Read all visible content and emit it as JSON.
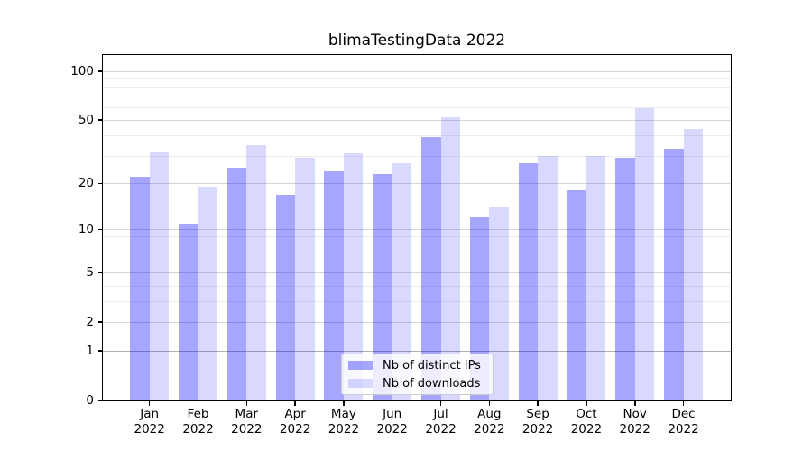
{
  "title": "blimaTestingData 2022",
  "chart_data": {
    "type": "bar",
    "title": "blimaTestingData 2022",
    "categories": [
      "Jan",
      "Feb",
      "Mar",
      "Apr",
      "May",
      "Jun",
      "Jul",
      "Aug",
      "Sep",
      "Oct",
      "Nov",
      "Dec"
    ],
    "category_year": "2022",
    "series": [
      {
        "name": "Nb of distinct IPs",
        "color": "rgba(0,0,255,0.35)",
        "values": [
          22,
          11,
          25,
          17,
          24,
          23,
          39,
          12,
          27,
          18,
          29,
          33
        ]
      },
      {
        "name": "Nb of downloads",
        "color": "rgba(0,0,255,0.15)",
        "values": [
          32,
          19,
          35,
          29,
          31,
          27,
          52,
          14,
          30,
          30,
          59,
          44
        ]
      }
    ],
    "xlabel": "",
    "ylabel": "",
    "yscale": "log1p",
    "ylim": [
      0,
      126
    ],
    "yticks_major": [
      0,
      1,
      2,
      5,
      10,
      20,
      50,
      100
    ],
    "yticks_minor": [
      3,
      4,
      6,
      7,
      8,
      9,
      30,
      40,
      60,
      70,
      80,
      90
    ],
    "emphasized_gridlines": [
      1
    ],
    "grid": true,
    "legend_position": "lower center",
    "colors": {
      "grid_major": "#d6d6d6",
      "grid_minor": "#ededed",
      "grid_emphasis": "#b0b0b0",
      "axis": "#000000",
      "background": "#ffffff"
    }
  }
}
